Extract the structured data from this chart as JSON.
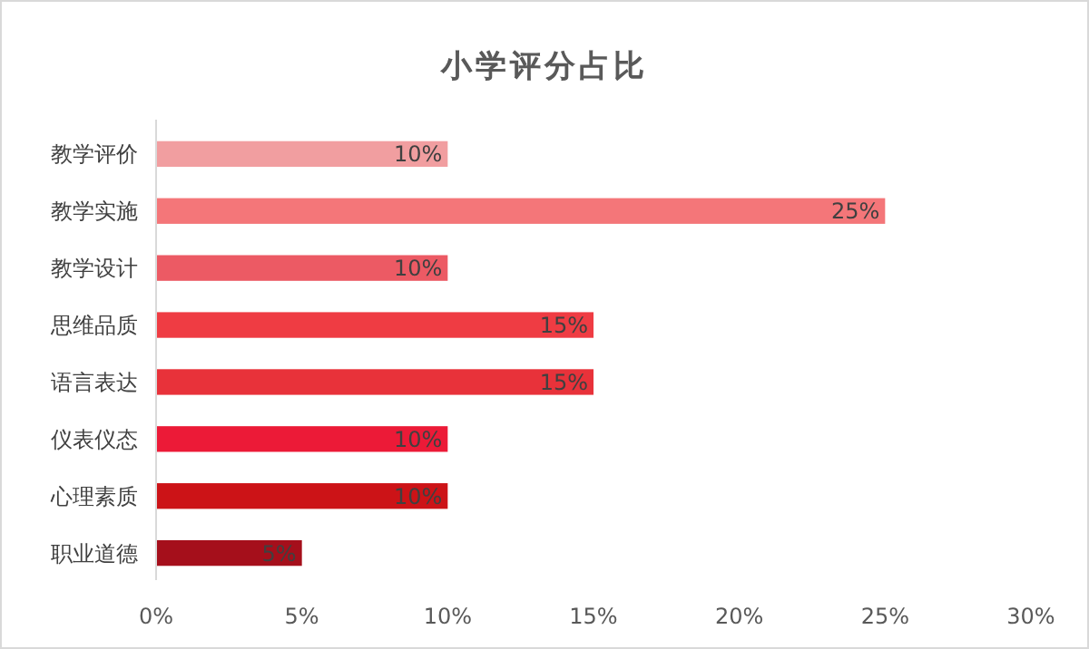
{
  "chart_data": {
    "type": "bar",
    "orientation": "horizontal",
    "title": "小学评分占比",
    "categories": [
      "教学评价",
      "教学实施",
      "教学设计",
      "思维品质",
      "语言表达",
      "仪表仪态",
      "心理素质",
      "职业道德"
    ],
    "values": [
      10,
      25,
      10,
      15,
      15,
      10,
      10,
      5
    ],
    "colors": [
      "#f19ea0",
      "#f47679",
      "#ec5a64",
      "#ef3c43",
      "#e8323a",
      "#ec1a37",
      "#cc1317",
      "#a50f1b"
    ],
    "value_labels": [
      "10%",
      "25%",
      "10%",
      "15%",
      "15%",
      "10%",
      "10%",
      "5%"
    ],
    "xlim": [
      0,
      30
    ],
    "xticks": [
      {
        "value": 0,
        "label": "0%"
      },
      {
        "value": 5,
        "label": "5%"
      },
      {
        "value": 10,
        "label": "10%"
      },
      {
        "value": 15,
        "label": "15%"
      },
      {
        "value": 20,
        "label": "20%"
      },
      {
        "value": 25,
        "label": "25%"
      },
      {
        "value": 30,
        "label": "30%"
      }
    ],
    "grid": false
  }
}
